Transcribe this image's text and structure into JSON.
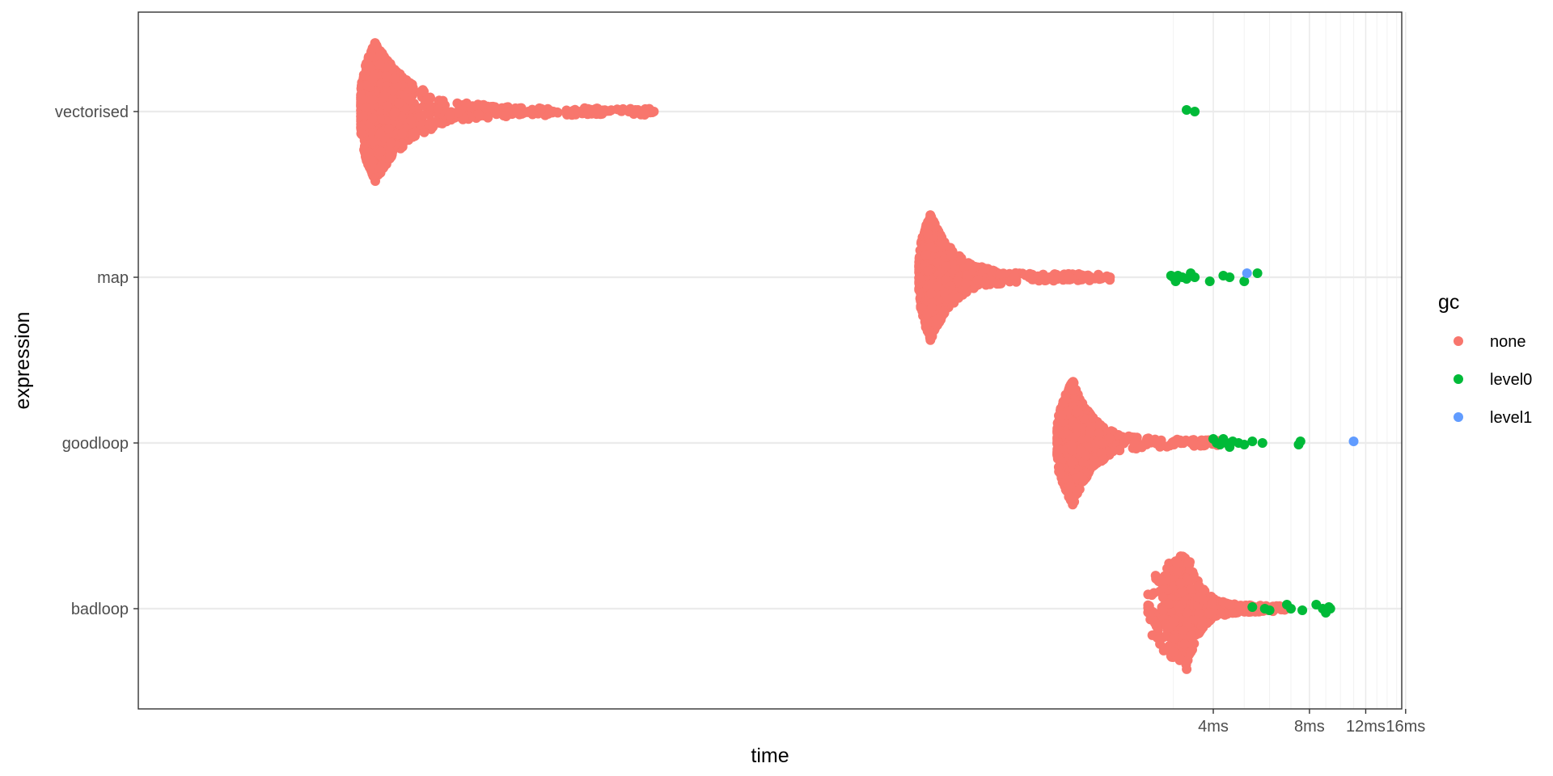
{
  "chart_data": {
    "type": "beeswarm",
    "xlabel": "time",
    "ylabel": "expression",
    "x_scale": "log",
    "x_ticks": [
      "4ms",
      "8ms",
      "12ms",
      "16ms"
    ],
    "x_tick_values_ms": [
      4,
      8,
      12,
      16
    ],
    "categories": [
      "vectorised",
      "map",
      "goodloop",
      "badloop"
    ],
    "grid": true,
    "legend": {
      "title": "gc",
      "placement": "right",
      "entries": [
        {
          "name": "none",
          "color": "#F8766D"
        },
        {
          "name": "level0",
          "color": "#00BA38"
        },
        {
          "name": "level1",
          "color": "#619CFF"
        }
      ]
    },
    "distributions": [
      {
        "expression": "vectorised",
        "gc": "none",
        "min_ms": 0.0086,
        "mode_ms": 0.0095,
        "max_ms": 0.071,
        "spread": 0.93,
        "density": 1.0
      },
      {
        "expression": "vectorised",
        "gc": "level0",
        "values_ms": [
          3.3,
          3.5
        ]
      },
      {
        "expression": "map",
        "gc": "none",
        "min_ms": 0.48,
        "mode_ms": 0.52,
        "max_ms": 1.9,
        "spread": 0.84,
        "density": 0.85
      },
      {
        "expression": "map",
        "gc": "level0",
        "values_ms": [
          2.95,
          3.0,
          3.05,
          3.1,
          3.2,
          3.3,
          3.4,
          3.5,
          3.9,
          4.3,
          4.5,
          5.0,
          5.5
        ]
      },
      {
        "expression": "map",
        "gc": "level1",
        "values_ms": [
          5.1
        ]
      },
      {
        "expression": "goodloop",
        "gc": "none",
        "min_ms": 1.3,
        "mode_ms": 1.45,
        "max_ms": 4.4,
        "spread": 0.84,
        "density": 0.55
      },
      {
        "expression": "goodloop",
        "gc": "level0",
        "values_ms": [
          4.0,
          4.1,
          4.2,
          4.3,
          4.4,
          4.5,
          4.6,
          4.8,
          5.0,
          5.3,
          5.7,
          7.4,
          7.5
        ]
      },
      {
        "expression": "goodloop",
        "gc": "level1",
        "values_ms": [
          11.0
        ]
      },
      {
        "expression": "badloop",
        "gc": "none",
        "min_ms": 2.5,
        "mode_ms": 3.3,
        "max_ms": 6.7,
        "spread": 0.8,
        "density": 0.25
      },
      {
        "expression": "badloop",
        "gc": "level0",
        "values_ms": [
          5.3,
          5.8,
          6.0,
          6.8,
          7.0,
          7.6,
          8.4,
          8.8,
          9.0,
          9.2,
          9.3
        ]
      }
    ]
  }
}
